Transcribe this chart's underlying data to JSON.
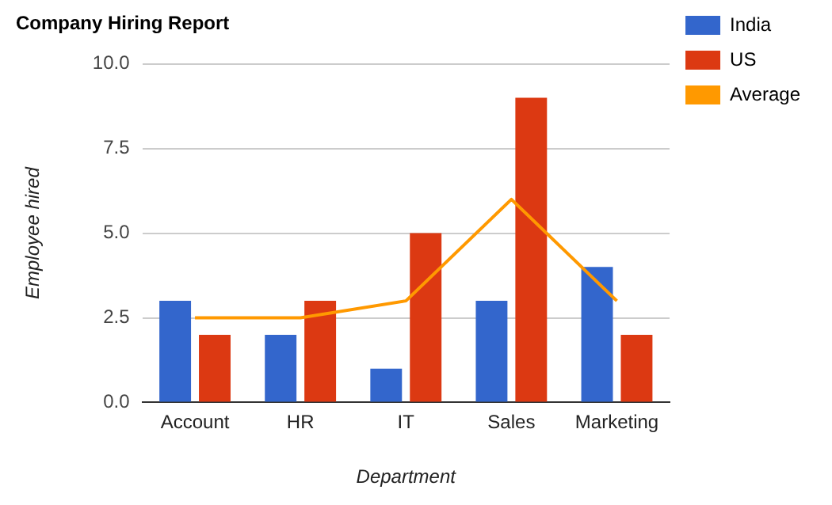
{
  "chart_data": {
    "type": "bar",
    "title": "Company Hiring Report",
    "xlabel": "Department",
    "ylabel": "Employee hired",
    "categories": [
      "Account",
      "HR",
      "IT",
      "Sales",
      "Marketing"
    ],
    "series": [
      {
        "name": "India",
        "color": "#3366cc",
        "values": [
          3,
          2,
          1,
          3,
          4
        ]
      },
      {
        "name": "US",
        "color": "#dc3912",
        "values": [
          2,
          3,
          5,
          9,
          2
        ]
      },
      {
        "name": "Average",
        "type": "line",
        "color": "#ff9900",
        "values": [
          2.5,
          2.5,
          3,
          6,
          3
        ]
      }
    ],
    "ylim": [
      0,
      10
    ],
    "yticks": [
      {
        "value": 0,
        "label": "0.0"
      },
      {
        "value": 2.5,
        "label": "2.5"
      },
      {
        "value": 5,
        "label": "5.0"
      },
      {
        "value": 7.5,
        "label": "7.5"
      },
      {
        "value": 10,
        "label": "10.0"
      }
    ],
    "grid": "y",
    "legend": "top right"
  }
}
